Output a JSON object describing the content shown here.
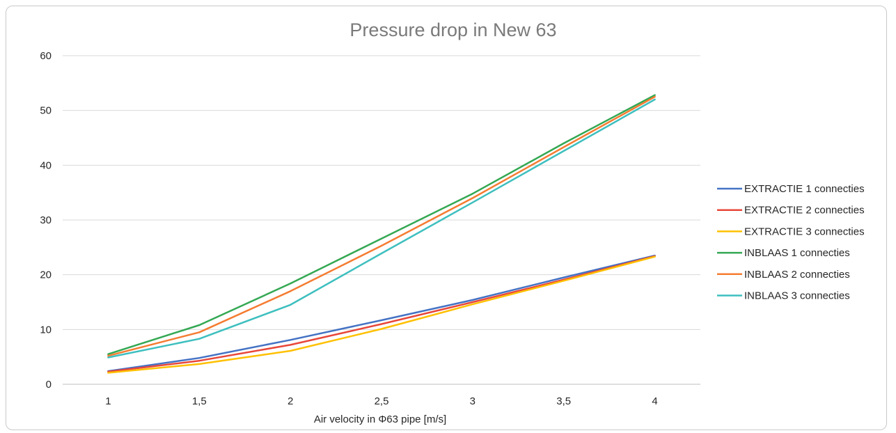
{
  "chart_data": {
    "type": "line",
    "title": "Pressure drop in New 63",
    "xlabel": "Air velocity in Φ63 pipe [m/s]",
    "ylabel": "",
    "categories": [
      "1",
      "1,5",
      "2",
      "2,5",
      "3",
      "3,5",
      "4"
    ],
    "y_ticks": [
      "0",
      "10",
      "20",
      "30",
      "40",
      "50",
      "60"
    ],
    "ylim": [
      0,
      60
    ],
    "grid": true,
    "legend_position": "right",
    "series": [
      {
        "name": "EXTRACTIE 1 connecties",
        "color": "#4472c4",
        "values": [
          2.4,
          4.8,
          8.1,
          11.7,
          15.4,
          19.5,
          23.5
        ]
      },
      {
        "name": "EXTRACTIE 2 connecties",
        "color": "#e8473a",
        "values": [
          2.3,
          4.3,
          7.2,
          11.0,
          15.0,
          19.1,
          23.4
        ]
      },
      {
        "name": "EXTRACTIE 3 connecties",
        "color": "#ffc000",
        "values": [
          2.1,
          3.7,
          6.1,
          10.1,
          14.6,
          18.9,
          23.3
        ]
      },
      {
        "name": "INBLAAS 1 connecties",
        "color": "#34a853",
        "values": [
          5.5,
          10.8,
          18.4,
          26.6,
          34.8,
          44.0,
          52.8
        ]
      },
      {
        "name": "INBLAAS 2 connecties",
        "color": "#f57c32",
        "values": [
          5.2,
          9.5,
          17.0,
          25.3,
          34.0,
          43.3,
          52.5
        ]
      },
      {
        "name": "INBLAAS 3 connecties",
        "color": "#3ebfbf",
        "values": [
          4.9,
          8.3,
          14.5,
          23.9,
          33.2,
          42.6,
          52.0
        ]
      }
    ]
  }
}
